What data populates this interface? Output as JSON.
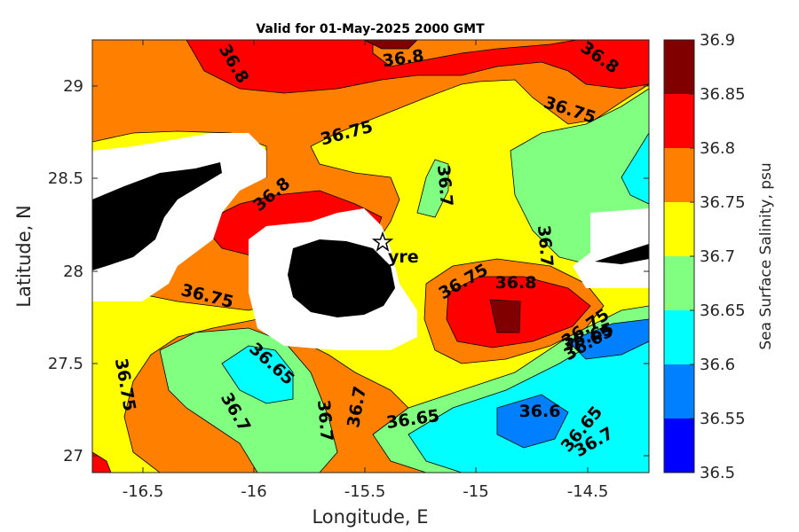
{
  "title": "Valid for 01-May-2025 2000 GMT",
  "xlabel": "Longitude, E",
  "ylabel": "Latitude, N",
  "colorbar_label": "Sea Surface Salinity, psu",
  "site_label": "yre",
  "x_ticks": [
    "-16.5",
    "-16",
    "-15.5",
    "-15",
    "-14.5"
  ],
  "y_ticks": [
    "27",
    "27.5",
    "28",
    "28.5",
    "29"
  ],
  "colorbar": {
    "ticks": [
      "36.5",
      "36.55",
      "36.6",
      "36.65",
      "36.7",
      "36.75",
      "36.8",
      "36.85",
      "36.9"
    ],
    "colors": [
      "#0000ff",
      "#0080ff",
      "#00ffff",
      "#80ff80",
      "#ffff00",
      "#ff8000",
      "#ff0000",
      "#800000"
    ]
  },
  "contour_labels": [
    "36.8",
    "36.8",
    "36.8",
    "36.75",
    "36.75",
    "36.7",
    "36.8",
    "36.7",
    "36.75",
    "36.8",
    "36.75",
    "36.75",
    "36.65",
    "36.65",
    "36.6",
    "36.75",
    "36.65",
    "36.7",
    "36.7",
    "36.7",
    "36.65",
    "36.65",
    "36.7"
  ],
  "chart_data": {
    "type": "heatmap",
    "title": "Valid for 01-May-2025 2000 GMT",
    "xlabel": "Longitude, E",
    "ylabel": "Latitude, N",
    "xlim": [
      -16.7,
      -14.2
    ],
    "ylim": [
      26.9,
      29.25
    ],
    "colorbar_levels": [
      36.5,
      36.55,
      36.6,
      36.65,
      36.7,
      36.75,
      36.8,
      36.85,
      36.9
    ],
    "colorbar_label": "Sea Surface Salinity, psu",
    "site_marker": {
      "label": "yre",
      "lon": -15.42,
      "lat": 28.15
    }
  }
}
